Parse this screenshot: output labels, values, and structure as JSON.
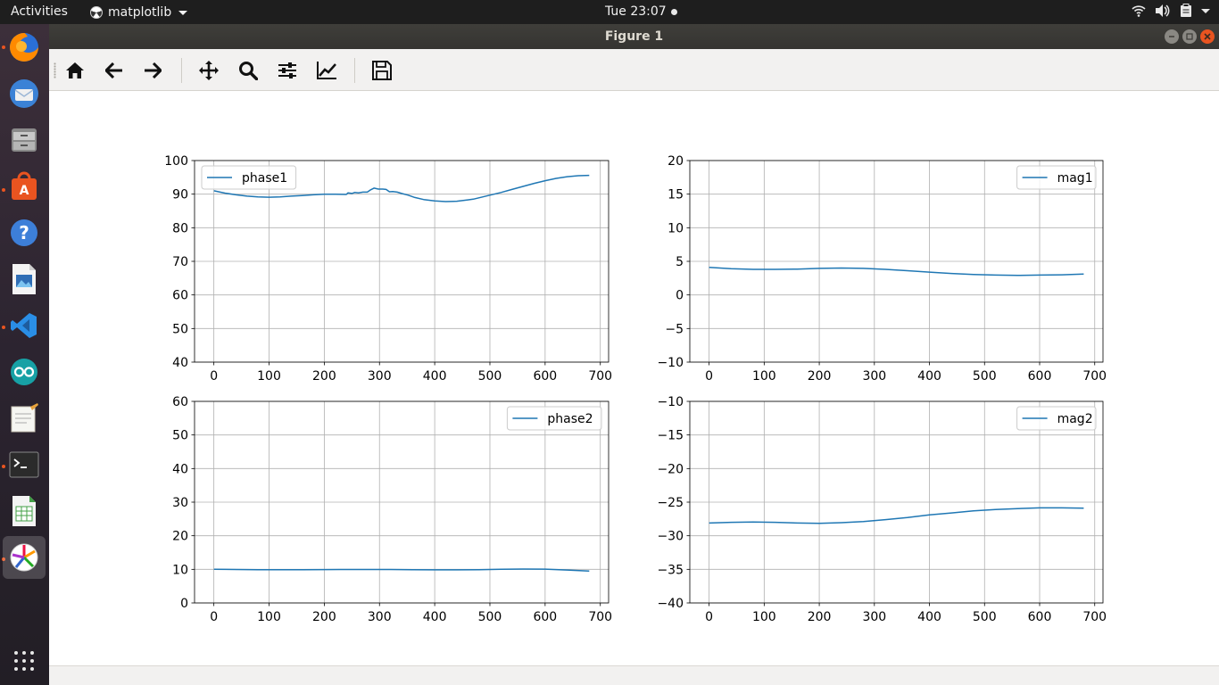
{
  "topbar": {
    "activities": "Activities",
    "app_name": "matplotlib",
    "clock": "Tue 23:07"
  },
  "dock": {
    "items": [
      "firefox",
      "thunderbird",
      "files",
      "ubuntu-software",
      "help",
      "image-viewer",
      "vscode",
      "arduino",
      "text-editor",
      "terminal",
      "spreadsheet",
      "matplotlib"
    ]
  },
  "window": {
    "title": "Figure 1"
  },
  "toolbar": {
    "buttons": [
      "home-icon",
      "back-arrow-icon",
      "forward-arrow-icon",
      "pan-icon",
      "zoom-icon",
      "configure-subplots-icon",
      "edit-axis-icon",
      "save-icon"
    ]
  },
  "colors": {
    "series": "#1f77b4",
    "grid": "#b0b0b0",
    "close_button": "#e95420"
  },
  "chart_data": [
    {
      "type": "line",
      "xlim": [
        -35,
        715
      ],
      "ylim": [
        40,
        100
      ],
      "xticks": [
        0,
        100,
        200,
        300,
        400,
        500,
        600,
        700
      ],
      "yticks": [
        40,
        50,
        60,
        70,
        80,
        90,
        100
      ],
      "grid": true,
      "legend": "top-left",
      "series": [
        {
          "name": "phase1",
          "x": [
            0,
            20,
            40,
            60,
            80,
            100,
            120,
            140,
            160,
            180,
            200,
            220,
            240,
            243,
            250,
            255,
            262,
            270,
            278,
            284,
            290,
            298,
            306,
            312,
            318,
            324,
            332,
            340,
            352,
            364,
            380,
            400,
            420,
            440,
            460,
            470,
            480,
            500,
            520,
            540,
            560,
            580,
            600,
            620,
            640,
            660,
            680
          ],
          "y": [
            91.0,
            90.3,
            89.8,
            89.4,
            89.2,
            89.1,
            89.2,
            89.4,
            89.6,
            89.8,
            90.0,
            90.0,
            89.9,
            90.4,
            90.2,
            90.5,
            90.4,
            90.6,
            90.6,
            91.3,
            91.8,
            91.5,
            91.5,
            91.4,
            90.7,
            90.8,
            90.6,
            90.2,
            89.7,
            89.0,
            88.4,
            88.0,
            87.8,
            87.9,
            88.3,
            88.5,
            88.9,
            89.7,
            90.5,
            91.4,
            92.3,
            93.2,
            94.0,
            94.7,
            95.2,
            95.5,
            95.6
          ]
        }
      ]
    },
    {
      "type": "line",
      "xlim": [
        -35,
        715
      ],
      "ylim": [
        -10,
        20
      ],
      "xticks": [
        0,
        100,
        200,
        300,
        400,
        500,
        600,
        700
      ],
      "yticks": [
        -10,
        -5,
        0,
        5,
        10,
        15,
        20
      ],
      "grid": true,
      "legend": "top-right",
      "series": [
        {
          "name": "mag1",
          "x": [
            0,
            40,
            80,
            120,
            160,
            200,
            240,
            280,
            320,
            360,
            400,
            440,
            480,
            520,
            560,
            600,
            640,
            680
          ],
          "y": [
            4.1,
            3.9,
            3.8,
            3.8,
            3.85,
            3.95,
            4.0,
            3.95,
            3.8,
            3.6,
            3.4,
            3.2,
            3.05,
            2.95,
            2.9,
            2.95,
            3.0,
            3.1
          ]
        }
      ]
    },
    {
      "type": "line",
      "xlim": [
        -35,
        715
      ],
      "ylim": [
        0,
        60
      ],
      "xticks": [
        0,
        100,
        200,
        300,
        400,
        500,
        600,
        700
      ],
      "yticks": [
        0,
        10,
        20,
        30,
        40,
        50,
        60
      ],
      "grid": true,
      "legend": "top-right",
      "series": [
        {
          "name": "phase2",
          "x": [
            0,
            40,
            80,
            120,
            160,
            200,
            240,
            280,
            320,
            360,
            400,
            440,
            480,
            520,
            560,
            600,
            640,
            680
          ],
          "y": [
            10.0,
            9.95,
            9.9,
            9.9,
            9.9,
            9.92,
            9.95,
            9.95,
            9.95,
            9.9,
            9.85,
            9.85,
            9.9,
            10.0,
            10.1,
            10.05,
            9.8,
            9.5
          ]
        }
      ]
    },
    {
      "type": "line",
      "xlim": [
        -35,
        715
      ],
      "ylim": [
        -40,
        -10
      ],
      "xticks": [
        0,
        100,
        200,
        300,
        400,
        500,
        600,
        700
      ],
      "yticks": [
        -40,
        -35,
        -30,
        -25,
        -20,
        -15,
        -10
      ],
      "grid": true,
      "legend": "top-right",
      "series": [
        {
          "name": "mag2",
          "x": [
            0,
            40,
            80,
            120,
            160,
            200,
            240,
            280,
            320,
            360,
            400,
            440,
            480,
            520,
            560,
            600,
            640,
            680
          ],
          "y": [
            -28.1,
            -28.0,
            -27.95,
            -28.0,
            -28.1,
            -28.15,
            -28.05,
            -27.9,
            -27.6,
            -27.3,
            -26.9,
            -26.6,
            -26.3,
            -26.1,
            -25.95,
            -25.85,
            -25.85,
            -25.9
          ]
        }
      ]
    }
  ]
}
